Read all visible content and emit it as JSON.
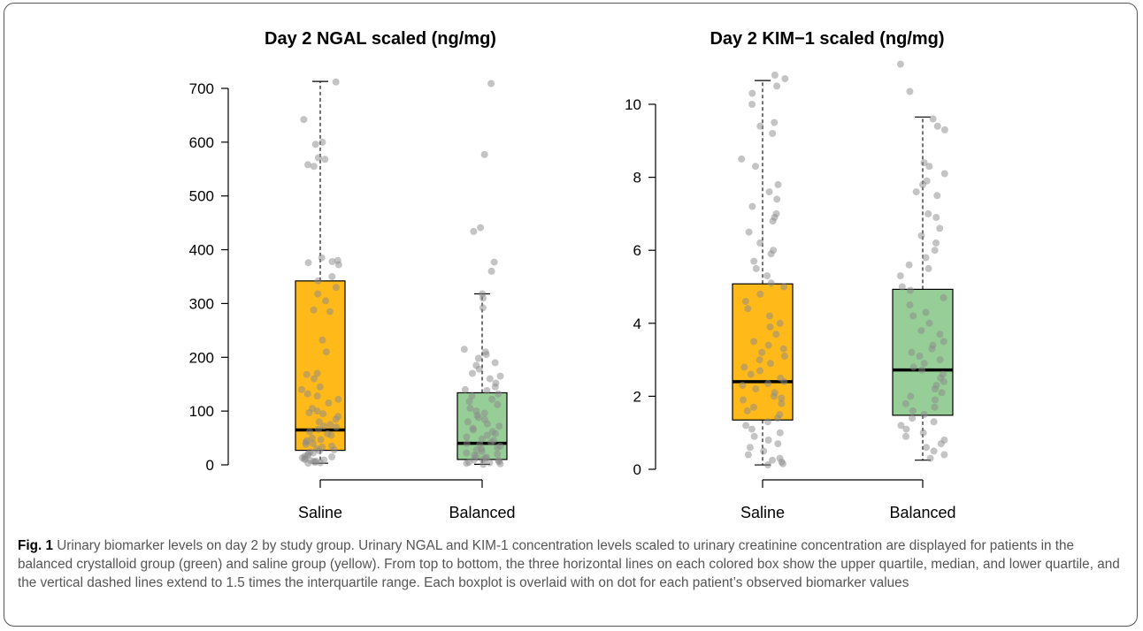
{
  "caption": {
    "label": "Fig. 1",
    "text": "Urinary biomarker levels on day 2 by study group. Urinary NGAL and KIM-1 concentration levels scaled to urinary creatinine concentration are displayed for patients in the balanced crystalloid group (green) and saline group (yellow). From top to bottom, the three horizontal lines on each colored box show the upper quartile, median, and lower quartile, and the vertical dashed lines extend to 1.5 times the interquartile range. Each boxplot is overlaid with on dot for each patient’s observed biomarker values"
  },
  "colors": {
    "saline": "#FFBA1A",
    "balanced": "#97CD96",
    "points": "#8a8a8a"
  },
  "chart_data": [
    {
      "type": "box",
      "title": "Day 2 NGAL scaled (ng/mg)",
      "categories": [
        "Saline",
        "Balanced"
      ],
      "yticks": [
        0,
        100,
        200,
        300,
        400,
        500,
        600,
        700
      ],
      "ylim": [
        -25,
        725
      ],
      "grid": false,
      "boxes": [
        {
          "name": "Saline",
          "whisker_low": 3,
          "q1": 27,
          "median": 65,
          "q3": 342,
          "whisker_high": 713,
          "points": [
            712,
            642,
            600,
            596,
            571,
            568,
            558,
            555,
            385,
            380,
            378,
            376,
            372,
            350,
            342,
            330,
            318,
            305,
            288,
            285,
            232,
            210,
            170,
            168,
            160,
            145,
            140,
            132,
            128,
            122,
            115,
            105,
            100,
            97,
            95,
            90,
            85,
            80,
            75,
            72,
            70,
            66,
            62,
            58,
            55,
            50,
            47,
            45,
            42,
            40,
            38,
            35,
            33,
            30,
            28,
            26,
            24,
            22,
            20,
            18,
            16,
            15,
            13,
            12,
            10,
            9,
            8,
            7,
            6,
            5,
            4,
            3
          ]
        },
        {
          "name": "Balanced",
          "whisker_low": 1,
          "q1": 10,
          "median": 40,
          "q3": 134,
          "whisker_high": 318,
          "points": [
            709,
            577,
            441,
            434,
            377,
            360,
            318,
            310,
            292,
            215,
            210,
            205,
            198,
            190,
            185,
            178,
            170,
            165,
            160,
            152,
            145,
            140,
            138,
            132,
            128,
            122,
            118,
            112,
            105,
            100,
            96,
            92,
            88,
            84,
            80,
            76,
            72,
            68,
            65,
            62,
            58,
            55,
            52,
            48,
            45,
            42,
            40,
            38,
            35,
            32,
            30,
            28,
            25,
            22,
            20,
            18,
            16,
            14,
            12,
            10,
            9,
            8,
            6,
            5,
            4,
            3,
            2,
            1
          ]
        }
      ]
    },
    {
      "type": "box",
      "title": "Day 2 KIM−1 scaled (ng/mg)",
      "categories": [
        "Saline",
        "Balanced"
      ],
      "yticks": [
        0,
        2,
        4,
        6,
        8,
        10
      ],
      "ylim": [
        -0.45,
        10.95
      ],
      "grid": false,
      "boxes": [
        {
          "name": "Saline",
          "whisker_low": 0.12,
          "q1": 1.35,
          "median": 2.4,
          "q3": 5.08,
          "whisker_high": 10.65,
          "points": [
            10.8,
            10.7,
            10.5,
            10.3,
            10.0,
            9.5,
            9.4,
            9.2,
            8.5,
            8.3,
            7.8,
            7.6,
            7.4,
            7.2,
            7.0,
            6.9,
            6.8,
            6.5,
            6.2,
            6.0,
            5.9,
            5.7,
            5.5,
            5.3,
            5.1,
            5.0,
            4.8,
            4.6,
            4.4,
            4.2,
            4.0,
            3.9,
            3.7,
            3.5,
            3.4,
            3.3,
            3.2,
            3.1,
            3.0,
            2.9,
            2.8,
            2.7,
            2.6,
            2.5,
            2.4,
            2.35,
            2.3,
            2.2,
            2.1,
            2.0,
            1.95,
            1.9,
            1.8,
            1.7,
            1.6,
            1.5,
            1.4,
            1.3,
            1.2,
            1.1,
            1.0,
            0.9,
            0.8,
            0.7,
            0.6,
            0.5,
            0.4,
            0.3,
            0.25,
            0.2,
            0.15,
            0.12
          ]
        },
        {
          "name": "Balanced",
          "whisker_low": 0.25,
          "q1": 1.48,
          "median": 2.72,
          "q3": 4.93,
          "whisker_high": 9.65,
          "points": [
            11.1,
            10.35,
            9.6,
            9.4,
            9.3,
            8.4,
            8.3,
            8.1,
            7.9,
            7.8,
            7.6,
            7.5,
            7.0,
            6.9,
            6.6,
            6.4,
            6.2,
            6.0,
            5.8,
            5.6,
            5.5,
            5.3,
            5.0,
            4.9,
            4.7,
            4.5,
            4.3,
            4.2,
            4.0,
            3.8,
            3.7,
            3.5,
            3.4,
            3.3,
            3.2,
            3.1,
            3.0,
            2.9,
            2.8,
            2.72,
            2.6,
            2.5,
            2.4,
            2.3,
            2.2,
            2.1,
            2.0,
            1.9,
            1.8,
            1.7,
            1.6,
            1.5,
            1.4,
            1.3,
            1.2,
            1.1,
            1.0,
            0.9,
            0.8,
            0.7,
            0.6,
            0.5,
            0.4,
            0.3
          ]
        }
      ]
    }
  ]
}
